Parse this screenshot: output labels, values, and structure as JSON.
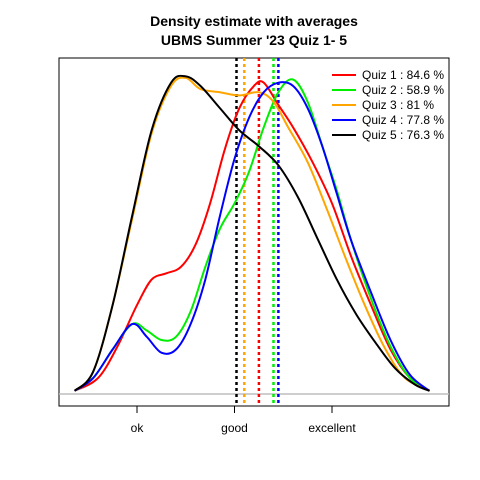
{
  "chart_data": {
    "type": "line",
    "title": "Density estimate with averages",
    "subtitle": "UBMS Summer '23 Quiz 1- 5",
    "xlabel": "",
    "ylabel": "",
    "x_ticks": [
      {
        "label": "ok",
        "value": 1
      },
      {
        "label": "good",
        "value": 2
      },
      {
        "label": "excellent",
        "value": 3
      }
    ],
    "xlim": [
      0.2,
      4.2
    ],
    "ylim": [
      0,
      1.02
    ],
    "grid": false,
    "legend_position": "top-right",
    "series": [
      {
        "name": "Quiz 1 : 84.6 %",
        "color": "#ff0000",
        "mean": 2.25,
        "points": [
          [
            0.36,
            0.01
          ],
          [
            0.6,
            0.05
          ],
          [
            0.8,
            0.15
          ],
          [
            1.0,
            0.28
          ],
          [
            1.15,
            0.36
          ],
          [
            1.3,
            0.38
          ],
          [
            1.45,
            0.4
          ],
          [
            1.6,
            0.47
          ],
          [
            1.75,
            0.6
          ],
          [
            1.9,
            0.77
          ],
          [
            2.05,
            0.9
          ],
          [
            2.2,
            0.97
          ],
          [
            2.3,
            0.98
          ],
          [
            2.45,
            0.91
          ],
          [
            2.6,
            0.84
          ],
          [
            2.8,
            0.73
          ],
          [
            3.0,
            0.6
          ],
          [
            3.2,
            0.43
          ],
          [
            3.4,
            0.28
          ],
          [
            3.6,
            0.14
          ],
          [
            3.8,
            0.05
          ],
          [
            4.0,
            0.01
          ]
        ]
      },
      {
        "name": "Quiz 2 : 58.9 %",
        "color": "#00ee00",
        "mean": 2.4,
        "points": [
          [
            0.36,
            0.01
          ],
          [
            0.55,
            0.05
          ],
          [
            0.75,
            0.14
          ],
          [
            0.95,
            0.22
          ],
          [
            1.1,
            0.2
          ],
          [
            1.25,
            0.17
          ],
          [
            1.4,
            0.18
          ],
          [
            1.55,
            0.26
          ],
          [
            1.7,
            0.4
          ],
          [
            1.85,
            0.52
          ],
          [
            2.0,
            0.6
          ],
          [
            2.15,
            0.7
          ],
          [
            2.3,
            0.84
          ],
          [
            2.45,
            0.95
          ],
          [
            2.6,
            0.99
          ],
          [
            2.75,
            0.92
          ],
          [
            2.9,
            0.78
          ],
          [
            3.05,
            0.64
          ],
          [
            3.2,
            0.48
          ],
          [
            3.4,
            0.3
          ],
          [
            3.6,
            0.15
          ],
          [
            3.8,
            0.05
          ],
          [
            4.0,
            0.01
          ]
        ]
      },
      {
        "name": "Quiz 3 : 81 %",
        "color": "#ffa500",
        "mean": 2.1,
        "points": [
          [
            0.36,
            0.01
          ],
          [
            0.55,
            0.07
          ],
          [
            0.75,
            0.28
          ],
          [
            0.95,
            0.55
          ],
          [
            1.15,
            0.82
          ],
          [
            1.35,
            0.97
          ],
          [
            1.5,
            0.995
          ],
          [
            1.65,
            0.96
          ],
          [
            1.85,
            0.95
          ],
          [
            2.05,
            0.94
          ],
          [
            2.25,
            0.95
          ],
          [
            2.4,
            0.92
          ],
          [
            2.55,
            0.84
          ],
          [
            2.75,
            0.73
          ],
          [
            2.95,
            0.58
          ],
          [
            3.15,
            0.42
          ],
          [
            3.35,
            0.27
          ],
          [
            3.55,
            0.14
          ],
          [
            3.75,
            0.05
          ],
          [
            4.0,
            0.01
          ]
        ]
      },
      {
        "name": "Quiz 4 : 77.8 %",
        "color": "#0000ff",
        "mean": 2.45,
        "points": [
          [
            0.36,
            0.01
          ],
          [
            0.55,
            0.05
          ],
          [
            0.75,
            0.14
          ],
          [
            0.95,
            0.22
          ],
          [
            1.1,
            0.18
          ],
          [
            1.25,
            0.13
          ],
          [
            1.4,
            0.14
          ],
          [
            1.55,
            0.22
          ],
          [
            1.7,
            0.36
          ],
          [
            1.85,
            0.56
          ],
          [
            2.0,
            0.74
          ],
          [
            2.15,
            0.87
          ],
          [
            2.3,
            0.95
          ],
          [
            2.45,
            0.98
          ],
          [
            2.6,
            0.97
          ],
          [
            2.75,
            0.9
          ],
          [
            2.9,
            0.78
          ],
          [
            3.05,
            0.63
          ],
          [
            3.2,
            0.48
          ],
          [
            3.4,
            0.32
          ],
          [
            3.6,
            0.17
          ],
          [
            3.8,
            0.06
          ],
          [
            4.0,
            0.01
          ]
        ]
      },
      {
        "name": "Quiz 5 : 76.3 %",
        "color": "#000000",
        "mean": 2.02,
        "points": [
          [
            0.36,
            0.01
          ],
          [
            0.55,
            0.07
          ],
          [
            0.75,
            0.28
          ],
          [
            0.95,
            0.56
          ],
          [
            1.15,
            0.83
          ],
          [
            1.35,
            0.98
          ],
          [
            1.5,
            1.0
          ],
          [
            1.65,
            0.97
          ],
          [
            1.85,
            0.9
          ],
          [
            2.05,
            0.83
          ],
          [
            2.25,
            0.78
          ],
          [
            2.45,
            0.72
          ],
          [
            2.65,
            0.62
          ],
          [
            2.85,
            0.49
          ],
          [
            3.05,
            0.36
          ],
          [
            3.25,
            0.25
          ],
          [
            3.45,
            0.16
          ],
          [
            3.65,
            0.08
          ],
          [
            3.85,
            0.03
          ],
          [
            4.0,
            0.01
          ]
        ]
      }
    ]
  }
}
